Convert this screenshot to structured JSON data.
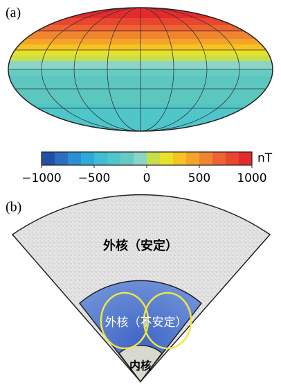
{
  "panel_a": {
    "label": "(a)",
    "colorbar": {
      "unit": "nT",
      "lim": [
        -1000,
        1000
      ],
      "ticks": [
        {
          "value": -1000,
          "label": "−1000"
        },
        {
          "value": -500,
          "label": "−500"
        },
        0,
        500,
        1000
      ],
      "colors": [
        "#2150a6",
        "#2a6fc0",
        "#2b8fd3",
        "#2eaad8",
        "#3ebdd4",
        "#4fc6c9",
        "#66ccc3",
        "#8bd5c8",
        "#c8de4a",
        "#e8e12a",
        "#f6c322",
        "#f4a429",
        "#f08530",
        "#ec6530",
        "#e8462f",
        "#e32a2c"
      ]
    }
  },
  "panel_b": {
    "label": "(b)",
    "outer_stable": "外核（安定）",
    "outer_unstable": "外核（不安定）",
    "inner_core": "内核"
  }
}
